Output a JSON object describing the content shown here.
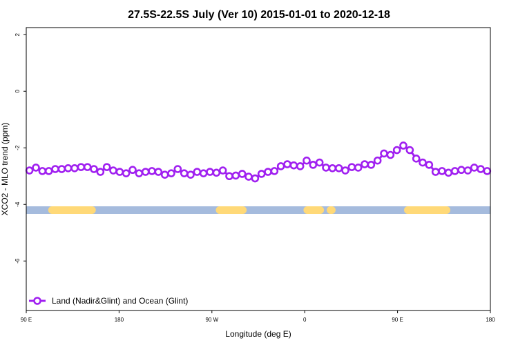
{
  "chart_data": {
    "type": "line",
    "title": "27.5S-22.5S July (Ver 10)   2015-01-01 to 2020-12-18",
    "xlabel": "Longitude (deg E)",
    "ylabel": "XCO2 - MLO trend (ppm)",
    "xlim": [
      90,
      450
    ],
    "ylim": [
      -7.75,
      2.25
    ],
    "x_ticks": [
      {
        "value": 90,
        "label": "90 E"
      },
      {
        "value": 162,
        "label": "180"
      },
      {
        "value": 234,
        "label": "90 W"
      },
      {
        "value": 306,
        "label": "0"
      },
      {
        "value": 378,
        "label": "90 E"
      },
      {
        "value": 450,
        "label": "180"
      }
    ],
    "y_ticks": [
      {
        "value": -6,
        "label": "-6"
      },
      {
        "value": -4,
        "label": "-4"
      },
      {
        "value": -2,
        "label": "-2"
      },
      {
        "value": 0,
        "label": "0"
      },
      {
        "value": 2,
        "label": "2"
      }
    ],
    "grid": false,
    "legend_position": "bottom-left",
    "series": [
      {
        "name": "Land (Nadir&Glint) and Ocean (Glint)",
        "color": "#a020f0",
        "marker": "open-circle",
        "x": [
          92.5,
          97.5,
          102.5,
          107.5,
          112.5,
          117.5,
          122.5,
          127.5,
          132.5,
          137.5,
          142.5,
          147.5,
          152.5,
          157.5,
          162.5,
          167.5,
          172.5,
          177.5,
          182.5,
          187.5,
          192.5,
          197.5,
          202.5,
          207.5,
          212.5,
          217.5,
          222.5,
          227.5,
          232.5,
          237.5,
          242.5,
          247.5,
          252.5,
          257.5,
          262.5,
          267.5,
          272.5,
          277.5,
          282.5,
          287.5,
          292.5,
          297.5,
          302.5,
          307.5,
          312.5,
          317.5,
          322.5,
          327.5,
          332.5,
          337.5,
          342.5,
          347.5,
          352.5,
          357.5,
          362.5,
          367.5,
          372.5,
          377.5,
          382.5,
          387.5,
          392.5,
          397.5,
          402.5,
          407.5,
          412.5,
          417.5,
          422.5,
          427.5,
          432.5,
          437.5,
          442.5,
          447.5
        ],
        "y": [
          -2.8,
          -2.7,
          -2.82,
          -2.82,
          -2.75,
          -2.75,
          -2.72,
          -2.72,
          -2.68,
          -2.68,
          -2.75,
          -2.85,
          -2.68,
          -2.8,
          -2.85,
          -2.9,
          -2.78,
          -2.9,
          -2.85,
          -2.82,
          -2.85,
          -2.95,
          -2.9,
          -2.75,
          -2.9,
          -2.95,
          -2.85,
          -2.9,
          -2.85,
          -2.88,
          -2.8,
          -3.0,
          -2.98,
          -2.92,
          -3.02,
          -3.08,
          -2.92,
          -2.85,
          -2.82,
          -2.65,
          -2.58,
          -2.62,
          -2.65,
          -2.45,
          -2.6,
          -2.52,
          -2.7,
          -2.72,
          -2.72,
          -2.8,
          -2.68,
          -2.7,
          -2.58,
          -2.6,
          -2.45,
          -2.2,
          -2.25,
          -2.08,
          -1.92,
          -2.08,
          -2.38,
          -2.52,
          -2.6,
          -2.85,
          -2.82,
          -2.88,
          -2.82,
          -2.78,
          -2.8,
          -2.7,
          -2.75,
          -2.82
        ]
      }
    ],
    "surface_strip": {
      "y": -4.2,
      "ocean_color": "#a5bbdd",
      "land_color": "#ffd978",
      "land_segments": [
        [
          110,
          141
        ],
        [
          240,
          256
        ],
        [
          256,
          258
        ],
        [
          308,
          315
        ],
        [
          315,
          318
        ],
        [
          326,
          327
        ],
        [
          386,
          416
        ]
      ]
    }
  }
}
